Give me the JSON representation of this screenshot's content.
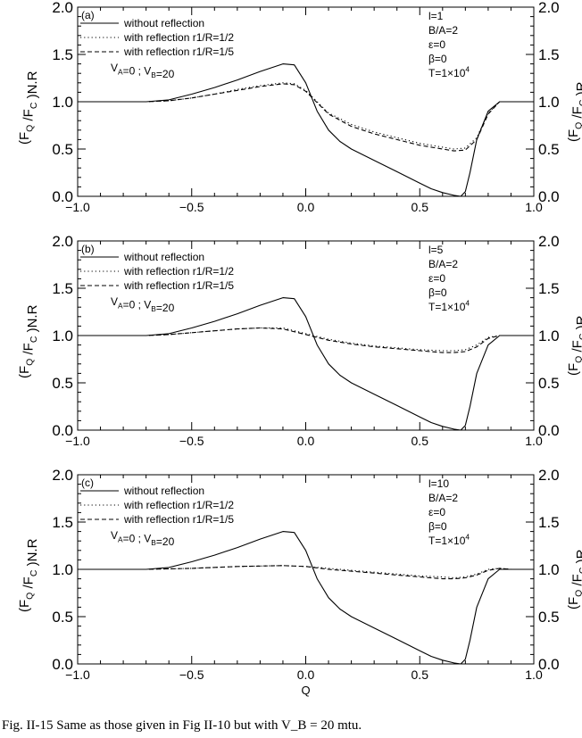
{
  "caption": "Fig. II-15 Same as those given in Fig II-10 but with V_B = 20 mtu.",
  "shared": {
    "xlabel": "Q",
    "ylabel_left": "(F_Q /F_C )N.R",
    "ylabel_right": "(F_Q /F_C )R",
    "xlim": [
      -1.0,
      1.0
    ],
    "ylim": [
      0.0,
      2.0
    ],
    "xticks": [
      "−1.0",
      "−0.5",
      "0.0",
      "0.5",
      "1.0"
    ],
    "yticks": [
      "0.0",
      "0.5",
      "1.0",
      "1.5",
      "2.0"
    ],
    "legend": [
      "without reflection",
      "with reflection r1/R=1/2",
      "with reflection r1/R=1/5"
    ],
    "velocity_note": "V_A=0 ; V_B=20",
    "params": [
      "B/A=2",
      "ε=0",
      "β=0",
      "T=1×10^4"
    ]
  },
  "chart_data": [
    {
      "type": "line",
      "panel": "(a)",
      "l_label": "l=1",
      "xlim": [
        -1.0,
        1.0
      ],
      "ylim": [
        0.0,
        2.0
      ],
      "series": [
        {
          "name": "without reflection",
          "style": "solid",
          "x": [
            -1.0,
            -0.7,
            -0.6,
            -0.5,
            -0.4,
            -0.3,
            -0.2,
            -0.1,
            -0.05,
            0.0,
            0.05,
            0.1,
            0.15,
            0.2,
            0.3,
            0.4,
            0.5,
            0.55,
            0.6,
            0.65,
            0.68,
            0.7,
            0.72,
            0.75,
            0.8,
            0.85,
            0.9,
            1.0
          ],
          "y": [
            1.0,
            1.0,
            1.02,
            1.08,
            1.15,
            1.23,
            1.32,
            1.4,
            1.39,
            1.2,
            0.9,
            0.7,
            0.58,
            0.5,
            0.38,
            0.26,
            0.14,
            0.08,
            0.04,
            0.01,
            0.0,
            0.05,
            0.25,
            0.6,
            0.9,
            1.0,
            1.0,
            1.0
          ]
        },
        {
          "name": "with reflection r1/R=1/2",
          "style": "dotted",
          "x": [
            -1.0,
            -0.7,
            -0.6,
            -0.5,
            -0.4,
            -0.3,
            -0.2,
            -0.1,
            -0.05,
            0.0,
            0.05,
            0.1,
            0.2,
            0.3,
            0.4,
            0.5,
            0.6,
            0.65,
            0.7,
            0.75,
            0.8,
            0.85,
            0.9,
            1.0
          ],
          "y": [
            1.0,
            1.0,
            1.01,
            1.04,
            1.08,
            1.13,
            1.17,
            1.2,
            1.19,
            1.12,
            1.0,
            0.88,
            0.76,
            0.68,
            0.62,
            0.56,
            0.52,
            0.5,
            0.51,
            0.62,
            0.88,
            1.0,
            1.0,
            1.0
          ]
        },
        {
          "name": "with reflection r1/R=1/5",
          "style": "dashed",
          "x": [
            -1.0,
            -0.7,
            -0.6,
            -0.5,
            -0.4,
            -0.3,
            -0.2,
            -0.1,
            -0.05,
            0.0,
            0.05,
            0.1,
            0.2,
            0.3,
            0.4,
            0.5,
            0.6,
            0.65,
            0.7,
            0.75,
            0.8,
            0.85,
            0.9,
            1.0
          ],
          "y": [
            1.0,
            1.0,
            1.01,
            1.04,
            1.08,
            1.12,
            1.16,
            1.19,
            1.18,
            1.11,
            0.99,
            0.87,
            0.74,
            0.66,
            0.6,
            0.54,
            0.5,
            0.48,
            0.49,
            0.6,
            0.87,
            1.0,
            1.0,
            1.0
          ]
        }
      ]
    },
    {
      "type": "line",
      "panel": "(b)",
      "l_label": "l=5",
      "xlim": [
        -1.0,
        1.0
      ],
      "ylim": [
        0.0,
        2.0
      ],
      "series": [
        {
          "name": "without reflection",
          "style": "solid",
          "x": [
            -1.0,
            -0.7,
            -0.6,
            -0.5,
            -0.4,
            -0.3,
            -0.2,
            -0.1,
            -0.05,
            0.0,
            0.05,
            0.1,
            0.15,
            0.2,
            0.3,
            0.4,
            0.5,
            0.55,
            0.6,
            0.65,
            0.68,
            0.7,
            0.72,
            0.75,
            0.8,
            0.85,
            0.9,
            1.0
          ],
          "y": [
            1.0,
            1.0,
            1.02,
            1.08,
            1.15,
            1.23,
            1.32,
            1.4,
            1.39,
            1.2,
            0.9,
            0.7,
            0.58,
            0.5,
            0.38,
            0.26,
            0.14,
            0.08,
            0.04,
            0.01,
            0.0,
            0.05,
            0.25,
            0.6,
            0.9,
            1.0,
            1.0,
            1.0
          ]
        },
        {
          "name": "with reflection r1/R=1/2",
          "style": "dotted",
          "x": [
            -1.0,
            -0.7,
            -0.6,
            -0.5,
            -0.4,
            -0.3,
            -0.2,
            -0.1,
            0.0,
            0.1,
            0.2,
            0.3,
            0.4,
            0.5,
            0.6,
            0.65,
            0.7,
            0.75,
            0.8,
            0.85,
            1.0
          ],
          "y": [
            1.0,
            1.0,
            1.01,
            1.03,
            1.05,
            1.07,
            1.08,
            1.08,
            1.02,
            0.96,
            0.92,
            0.89,
            0.87,
            0.85,
            0.84,
            0.84,
            0.85,
            0.9,
            0.98,
            1.0,
            1.0
          ]
        },
        {
          "name": "with reflection r1/R=1/5",
          "style": "dashed",
          "x": [
            -1.0,
            -0.7,
            -0.6,
            -0.5,
            -0.4,
            -0.3,
            -0.2,
            -0.1,
            0.0,
            0.1,
            0.2,
            0.3,
            0.4,
            0.5,
            0.6,
            0.65,
            0.7,
            0.75,
            0.8,
            0.85,
            1.0
          ],
          "y": [
            1.0,
            1.0,
            1.01,
            1.03,
            1.05,
            1.07,
            1.08,
            1.07,
            1.01,
            0.95,
            0.91,
            0.88,
            0.86,
            0.84,
            0.82,
            0.82,
            0.83,
            0.88,
            0.97,
            1.0,
            1.0
          ]
        }
      ]
    },
    {
      "type": "line",
      "panel": "(c)",
      "l_label": "l=10",
      "xlim": [
        -1.0,
        1.0
      ],
      "ylim": [
        0.0,
        2.0
      ],
      "series": [
        {
          "name": "without reflection",
          "style": "solid",
          "x": [
            -1.0,
            -0.7,
            -0.6,
            -0.5,
            -0.4,
            -0.3,
            -0.2,
            -0.1,
            -0.05,
            0.0,
            0.05,
            0.1,
            0.15,
            0.2,
            0.3,
            0.4,
            0.5,
            0.55,
            0.6,
            0.65,
            0.68,
            0.7,
            0.72,
            0.75,
            0.8,
            0.85,
            0.9,
            1.0
          ],
          "y": [
            1.0,
            1.0,
            1.02,
            1.08,
            1.15,
            1.23,
            1.32,
            1.4,
            1.39,
            1.2,
            0.9,
            0.7,
            0.58,
            0.5,
            0.38,
            0.26,
            0.14,
            0.08,
            0.04,
            0.01,
            0.0,
            0.05,
            0.25,
            0.6,
            0.9,
            1.0,
            1.0,
            1.0
          ]
        },
        {
          "name": "with reflection r1/R=1/2",
          "style": "dotted",
          "x": [
            -1.0,
            -0.7,
            -0.5,
            -0.3,
            -0.1,
            0.0,
            0.1,
            0.2,
            0.3,
            0.4,
            0.5,
            0.6,
            0.65,
            0.7,
            0.75,
            0.8,
            0.85,
            0.9,
            1.0
          ],
          "y": [
            1.0,
            1.0,
            1.01,
            1.03,
            1.04,
            1.03,
            1.01,
            0.99,
            0.97,
            0.95,
            0.93,
            0.92,
            0.91,
            0.92,
            0.95,
            1.0,
            1.01,
            1.0,
            1.0
          ]
        },
        {
          "name": "with reflection r1/R=1/5",
          "style": "dashed",
          "x": [
            -1.0,
            -0.7,
            -0.5,
            -0.3,
            -0.1,
            0.0,
            0.1,
            0.2,
            0.3,
            0.4,
            0.5,
            0.6,
            0.65,
            0.7,
            0.75,
            0.8,
            0.85,
            0.9,
            1.0
          ],
          "y": [
            1.0,
            1.0,
            1.01,
            1.03,
            1.04,
            1.03,
            1.0,
            0.98,
            0.96,
            0.94,
            0.92,
            0.9,
            0.9,
            0.91,
            0.94,
            0.99,
            1.01,
            1.0,
            1.0
          ]
        }
      ]
    }
  ]
}
